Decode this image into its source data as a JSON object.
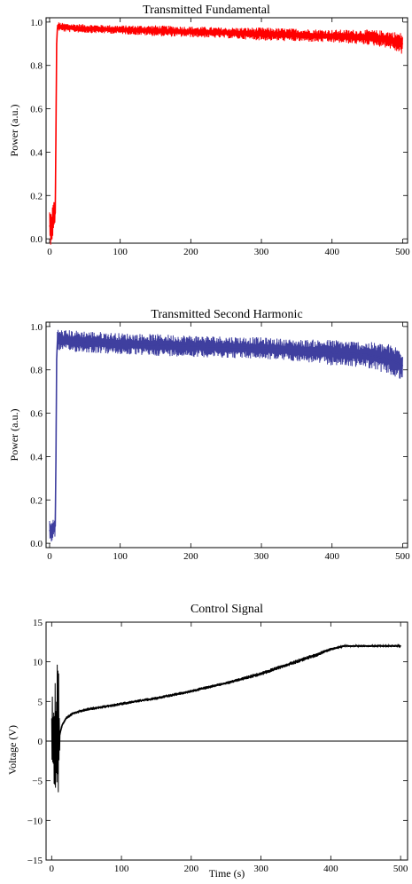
{
  "chart_data": [
    {
      "type": "line",
      "title": "Transmitted Fundamental",
      "xlabel": "",
      "ylabel": "Power (a.u.)",
      "xlim": [
        -5,
        507
      ],
      "ylim": [
        -0.02,
        1.02
      ],
      "x_ticks": [
        0,
        100,
        200,
        300,
        400,
        500
      ],
      "x_tick_labels": [
        "0",
        "100",
        "200",
        "300",
        "400",
        "500"
      ],
      "y_ticks": [
        0.0,
        0.2,
        0.4,
        0.6,
        0.8,
        1.0
      ],
      "y_tick_labels": [
        "0.0",
        "0.2",
        "0.4",
        "0.6",
        "0.8",
        "1.0"
      ],
      "color": "#ff0000",
      "series": [
        {
          "x": [
            0,
            2,
            4,
            6,
            8,
            9,
            10,
            11,
            12,
            20,
            50,
            100,
            150,
            200,
            250,
            300,
            350,
            400,
            450,
            480,
            500
          ],
          "y": [
            0.06,
            0.05,
            0.08,
            0.1,
            0.12,
            0.5,
            0.9,
            0.97,
            0.98,
            0.975,
            0.97,
            0.965,
            0.96,
            0.955,
            0.95,
            0.945,
            0.94,
            0.935,
            0.93,
            0.92,
            0.9
          ],
          "noise": [
            0.08,
            0.08,
            0.08,
            0.08,
            0.08,
            0.0,
            0.0,
            0.02,
            0.02,
            0.02,
            0.02,
            0.02,
            0.025,
            0.025,
            0.025,
            0.03,
            0.03,
            0.03,
            0.035,
            0.04,
            0.05
          ]
        }
      ]
    },
    {
      "type": "line",
      "title": "Transmitted Second Harmonic",
      "xlabel": "",
      "ylabel": "Power (a.u.)",
      "xlim": [
        -5,
        507
      ],
      "ylim": [
        -0.02,
        1.02
      ],
      "x_ticks": [
        0,
        100,
        200,
        300,
        400,
        500
      ],
      "x_tick_labels": [
        "0",
        "100",
        "200",
        "300",
        "400",
        "500"
      ],
      "y_ticks": [
        0.0,
        0.2,
        0.4,
        0.6,
        0.8,
        1.0
      ],
      "y_tick_labels": [
        "0.0",
        "0.2",
        "0.4",
        "0.6",
        "0.8",
        "1.0"
      ],
      "color": "#3f3f9f",
      "series": [
        {
          "x": [
            0,
            2,
            4,
            6,
            8,
            9,
            10,
            11,
            12,
            20,
            50,
            100,
            150,
            200,
            250,
            300,
            350,
            400,
            450,
            480,
            500
          ],
          "y": [
            0.06,
            0.05,
            0.06,
            0.07,
            0.08,
            0.4,
            0.85,
            0.93,
            0.94,
            0.935,
            0.93,
            0.92,
            0.915,
            0.91,
            0.905,
            0.9,
            0.89,
            0.88,
            0.87,
            0.85,
            0.82
          ],
          "noise": [
            0.05,
            0.05,
            0.05,
            0.05,
            0.05,
            0.0,
            0.0,
            0.05,
            0.05,
            0.05,
            0.05,
            0.05,
            0.05,
            0.05,
            0.05,
            0.05,
            0.05,
            0.06,
            0.06,
            0.07,
            0.08
          ]
        }
      ]
    },
    {
      "type": "line",
      "title": "Control Signal",
      "xlabel": "Time (s)",
      "ylabel": "Voltage (V)",
      "xlim": [
        -8,
        510
      ],
      "ylim": [
        -15,
        15
      ],
      "x_ticks": [
        0,
        100,
        200,
        300,
        400,
        500
      ],
      "x_tick_labels": [
        "0",
        "100",
        "200",
        "300",
        "400",
        "500"
      ],
      "y_ticks": [
        -15,
        -10,
        -5,
        0,
        5,
        10,
        15
      ],
      "y_tick_labels": [
        "−15",
        "−10",
        "−5",
        "0",
        "5",
        "10",
        "15"
      ],
      "zero_line": true,
      "color": "#000000",
      "series": [
        {
          "x": [
            0,
            2,
            4,
            6,
            8,
            10,
            12,
            15,
            20,
            30,
            50,
            80,
            100,
            120,
            150,
            200,
            250,
            300,
            350,
            380,
            400,
            420,
            450,
            500
          ],
          "y": [
            0.0,
            0.0,
            0.0,
            0.0,
            0.0,
            0.2,
            1.0,
            2.0,
            2.8,
            3.5,
            4.0,
            4.4,
            4.7,
            5.0,
            5.4,
            6.3,
            7.3,
            8.5,
            10.0,
            10.9,
            11.6,
            12.0,
            12.0,
            12.0
          ],
          "noise": [
            5.5,
            6.5,
            7.5,
            9.0,
            10.5,
            10.0,
            0.2,
            0.2,
            0.2,
            0.2,
            0.2,
            0.2,
            0.2,
            0.2,
            0.2,
            0.2,
            0.2,
            0.25,
            0.25,
            0.25,
            0.2,
            0.15,
            0.15,
            0.15
          ]
        }
      ]
    }
  ]
}
